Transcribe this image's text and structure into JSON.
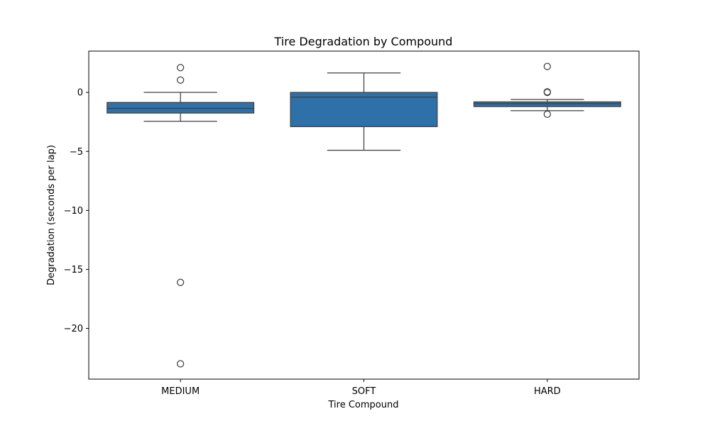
{
  "chart_data": {
    "type": "box",
    "title": "Tire Degradation by Compound",
    "xlabel": "Tire Compound",
    "ylabel": "Degradation (seconds per lap)",
    "ylim": [
      -24.3,
      3.5
    ],
    "yticks": [
      0,
      -5,
      -10,
      -15,
      -20
    ],
    "box_color": "#2e70a8",
    "edge_color": "#3f3f3f",
    "categories": [
      "MEDIUM",
      "SOFT",
      "HARD"
    ],
    "boxes": [
      {
        "category": "MEDIUM",
        "whisker_low": -2.45,
        "q1": -1.75,
        "median": -1.35,
        "q3": -0.85,
        "whisker_high": 0.0,
        "outliers": [
          2.1,
          1.05,
          -16.1,
          -23.0
        ]
      },
      {
        "category": "SOFT",
        "whisker_low": -4.9,
        "q1": -2.9,
        "median": -0.4,
        "q3": 0.0,
        "whisker_high": 1.65,
        "outliers": []
      },
      {
        "category": "HARD",
        "whisker_low": -1.55,
        "q1": -1.2,
        "median": -0.95,
        "q3": -0.8,
        "whisker_high": -0.6,
        "outliers": [
          2.2,
          0.05,
          0.0,
          -1.85
        ]
      }
    ]
  }
}
